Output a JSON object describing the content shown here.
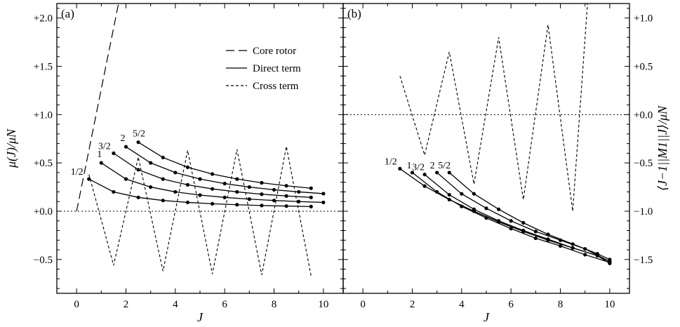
{
  "chart_data": [
    {
      "type": "line",
      "panel_label": "(a)",
      "xlabel": "J",
      "ylabel": "μ(J)/μN",
      "xlim": [
        -0.8,
        10.8
      ],
      "ylim": [
        -0.85,
        2.15
      ],
      "xticks": [
        0,
        2,
        4,
        6,
        8,
        10
      ],
      "xtick_labels": [
        "0",
        "2",
        "4",
        "6",
        "8",
        "10"
      ],
      "yticks": [
        -0.5,
        0.0,
        0.5,
        1.0,
        1.5,
        2.0
      ],
      "ytick_labels": [
        "−0.5",
        "+0.0",
        "+0.5",
        "+1.0",
        "+1.5",
        "+2.0"
      ],
      "yaxis_side": "left",
      "reference_line_y": 0,
      "legend": {
        "position": "top-right",
        "entries": [
          {
            "label": "Core rotor",
            "style": "dashed"
          },
          {
            "label": "Direct term",
            "style": "solid"
          },
          {
            "label": "Cross term",
            "style": "dotted"
          }
        ]
      },
      "core_rotor": {
        "x": [
          0,
          1.7
        ],
        "y": [
          0,
          2.15
        ]
      },
      "cross_term": {
        "x": [
          0.5,
          1.5,
          2.5,
          3.5,
          4.5,
          5.5,
          6.5,
          7.5,
          8.5,
          9.5
        ],
        "y": [
          0.38,
          -0.56,
          0.56,
          -0.62,
          0.63,
          -0.65,
          0.64,
          -0.66,
          0.67,
          -0.67
        ]
      },
      "direct_series": [
        {
          "label": "1/2",
          "x": [
            0.5,
            1.5,
            2.5,
            3.5,
            4.5,
            5.5,
            6.5,
            7.5,
            8.5,
            9.5
          ],
          "y": [
            0.333,
            0.2,
            0.143,
            0.111,
            0.091,
            0.077,
            0.067,
            0.059,
            0.053,
            0.048
          ]
        },
        {
          "label": "1",
          "x": [
            1,
            2,
            3,
            4,
            5,
            6,
            7,
            8,
            9,
            10
          ],
          "y": [
            0.5,
            0.333,
            0.25,
            0.2,
            0.167,
            0.143,
            0.125,
            0.111,
            0.1,
            0.091
          ]
        },
        {
          "label": "3/2",
          "x": [
            1.5,
            2.5,
            3.5,
            4.5,
            5.5,
            6.5,
            7.5,
            8.5,
            9.5
          ],
          "y": [
            0.6,
            0.429,
            0.333,
            0.273,
            0.231,
            0.2,
            0.176,
            0.158,
            0.143
          ]
        },
        {
          "label": "2",
          "x": [
            2,
            3,
            4,
            5,
            6,
            7,
            8,
            9,
            10
          ],
          "y": [
            0.667,
            0.5,
            0.4,
            0.333,
            0.286,
            0.25,
            0.222,
            0.2,
            0.182
          ]
        },
        {
          "label": "5/2",
          "x": [
            2.5,
            3.5,
            4.5,
            5.5,
            6.5,
            7.5,
            8.5,
            9.5
          ],
          "y": [
            0.714,
            0.556,
            0.455,
            0.385,
            0.333,
            0.294,
            0.263,
            0.238
          ]
        }
      ]
    },
    {
      "type": "line",
      "panel_label": "(b)",
      "xlabel": "J",
      "ylabel": "⟨J−1||M1||J⟩/μN",
      "xlim": [
        -0.8,
        10.8
      ],
      "ylim": [
        -1.85,
        1.15
      ],
      "xticks": [
        0,
        2,
        4,
        6,
        8,
        10
      ],
      "xtick_labels": [
        "0",
        "2",
        "4",
        "6",
        "8",
        "10"
      ],
      "yticks": [
        -1.5,
        -1.0,
        -0.5,
        0.0,
        0.5,
        1.0
      ],
      "ytick_labels": [
        "−1.5",
        "−1.0",
        "−0.5",
        "+0.0",
        "+0.5",
        "+1.0"
      ],
      "yaxis_side": "right",
      "reference_line_y": 0,
      "cross_term": {
        "x": [
          1.5,
          2.5,
          3.5,
          4.5,
          5.5,
          6.5,
          7.5,
          8.5,
          9.1
        ],
        "y": [
          0.4,
          -0.42,
          0.65,
          -0.72,
          0.8,
          -0.88,
          0.93,
          -1.0,
          1.15
        ]
      },
      "direct_series": [
        {
          "label": "1/2",
          "x": [
            1.5,
            2.5,
            3.5,
            4.5,
            5.5,
            6.5,
            7.5,
            8.5,
            9.5,
            10
          ],
          "y": [
            -0.56,
            -0.74,
            -0.88,
            -1.0,
            -1.11,
            -1.21,
            -1.3,
            -1.38,
            -1.46,
            -1.54
          ]
        },
        {
          "label": "1",
          "x": [
            2,
            3,
            4,
            5,
            6,
            7,
            8,
            9,
            10
          ],
          "y": [
            -0.6,
            -0.8,
            -0.95,
            -1.07,
            -1.18,
            -1.28,
            -1.36,
            -1.45,
            -1.53
          ]
        },
        {
          "label": "3/2",
          "x": [
            2.5,
            3.5,
            4.5,
            5.5,
            6.5,
            7.5,
            8.5,
            9.5,
            10
          ],
          "y": [
            -0.62,
            -0.83,
            -0.98,
            -1.1,
            -1.2,
            -1.29,
            -1.38,
            -1.46,
            -1.52
          ]
        },
        {
          "label": "2",
          "x": [
            3,
            4,
            5,
            6,
            7,
            8,
            9,
            10
          ],
          "y": [
            -0.6,
            -0.82,
            -0.97,
            -1.1,
            -1.21,
            -1.3,
            -1.39,
            -1.52
          ]
        },
        {
          "label": "5/2",
          "x": [
            3.5,
            4.5,
            5.5,
            6.5,
            7.5,
            8.5,
            9.5,
            10
          ],
          "y": [
            -0.6,
            -0.82,
            -0.98,
            -1.12,
            -1.24,
            -1.34,
            -1.44,
            -1.5
          ]
        }
      ]
    }
  ]
}
